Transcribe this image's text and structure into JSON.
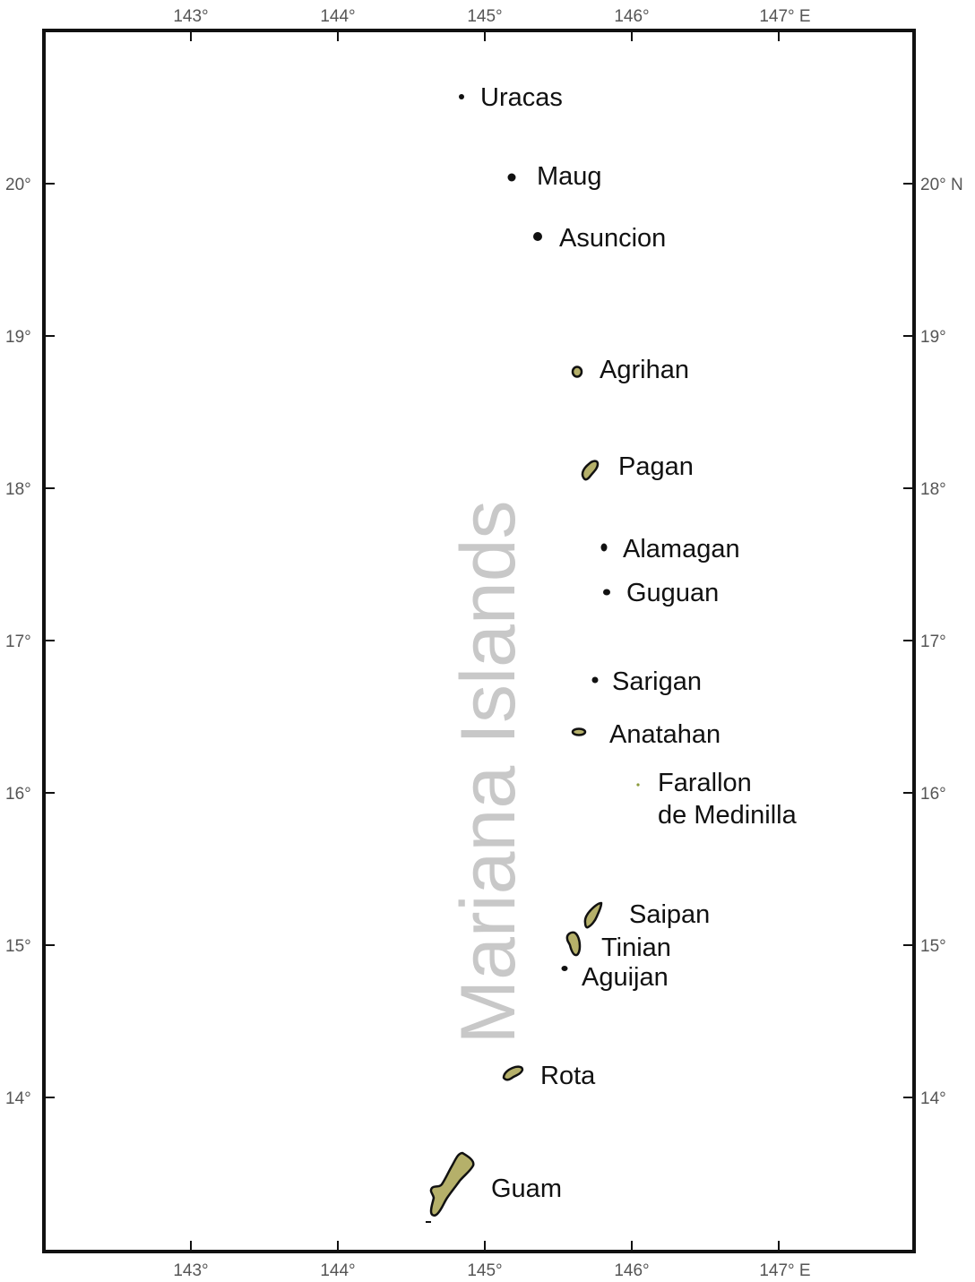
{
  "map": {
    "region_label": "Mariana Islands",
    "colors": {
      "frame": "#111111",
      "land_fill": "#b5b06a",
      "land_outline": "#111111",
      "region_label": "#c8c8c8",
      "tick_label": "#555555",
      "islet_green": "#8a9a3a"
    },
    "axes": {
      "top": [
        "143°",
        "144°",
        "145°",
        "146°",
        "147° E"
      ],
      "bottom": [
        "143°",
        "144°",
        "145°",
        "146°",
        "147° E"
      ],
      "left": [
        "20°",
        "19°",
        "18°",
        "17°",
        "16°",
        "15°",
        "14°"
      ],
      "right": [
        "20° N",
        "19°",
        "18°",
        "17°",
        "16°",
        "15°",
        "14°"
      ]
    },
    "islands": {
      "uracas": "Uracas",
      "maug": "Maug",
      "asuncion": "Asuncion",
      "agrihan": "Agrihan",
      "pagan": "Pagan",
      "alamagan": "Alamagan",
      "guguan": "Guguan",
      "sarigan": "Sarigan",
      "anatahan": "Anatahan",
      "farallon_line1": "Farallon",
      "farallon_line2": "de Medinilla",
      "saipan": "Saipan",
      "tinian": "Tinian",
      "aguijan": "Aguijan",
      "rota": "Rota",
      "guam": "Guam"
    }
  }
}
